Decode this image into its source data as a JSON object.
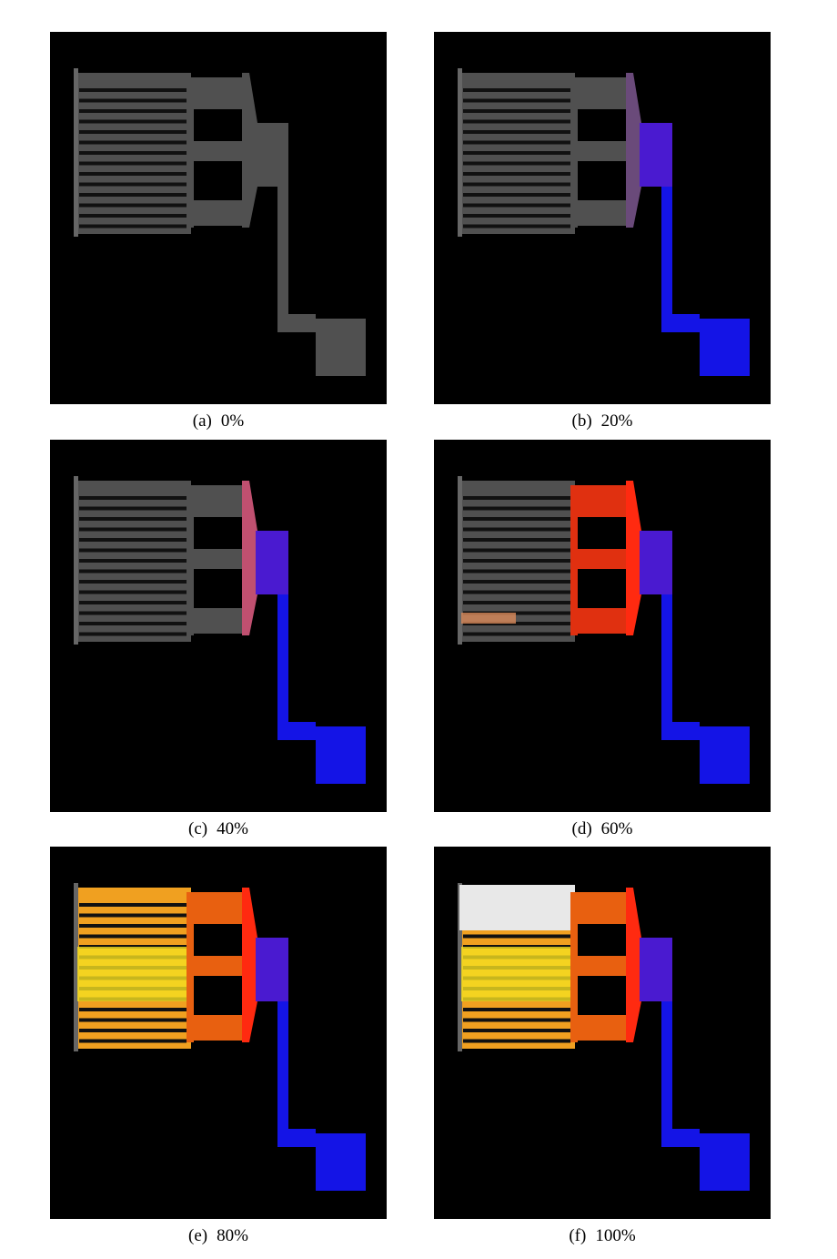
{
  "panels": [
    {
      "letter": "(a)",
      "caption": "0%"
    },
    {
      "letter": "(b)",
      "caption": "20%"
    },
    {
      "letter": "(c)",
      "caption": "40%"
    },
    {
      "letter": "(d)",
      "caption": "60%"
    },
    {
      "letter": "(e)",
      "caption": "80%"
    },
    {
      "letter": "(f)",
      "caption": "100%"
    }
  ]
}
